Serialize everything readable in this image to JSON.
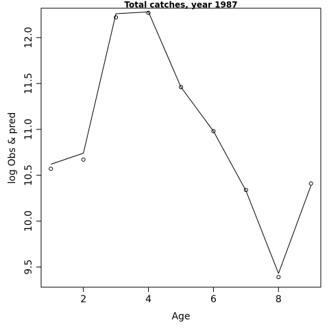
{
  "chart_data": {
    "type": "line",
    "title": "Total catches, year 1987",
    "xlabel": "Age",
    "ylabel": "log Obs & pred",
    "xlim": [
      0.7,
      9.3
    ],
    "ylim": [
      9.28,
      12.32
    ],
    "x_ticks": [
      2,
      4,
      6,
      8
    ],
    "y_ticks": [
      9.5,
      10.0,
      10.5,
      11.0,
      11.5,
      12.0
    ],
    "x_tick_labels": [
      "2",
      "4",
      "6",
      "8"
    ],
    "y_tick_labels": [
      "9.5",
      "10.0",
      "10.5",
      "11.0",
      "11.5",
      "12.0"
    ],
    "grid": false,
    "series": [
      {
        "style": "points",
        "x": [
          1,
          2,
          3,
          4,
          5,
          6,
          7,
          8,
          9
        ],
        "y": [
          10.57,
          10.67,
          12.22,
          12.27,
          11.46,
          10.98,
          10.34,
          9.39,
          10.41
        ]
      },
      {
        "style": "line",
        "x": [
          1,
          2,
          3,
          4,
          5,
          6,
          7,
          8,
          9
        ],
        "y": [
          10.62,
          10.74,
          12.26,
          12.28,
          11.46,
          10.98,
          10.33,
          9.43,
          10.39
        ]
      }
    ]
  }
}
